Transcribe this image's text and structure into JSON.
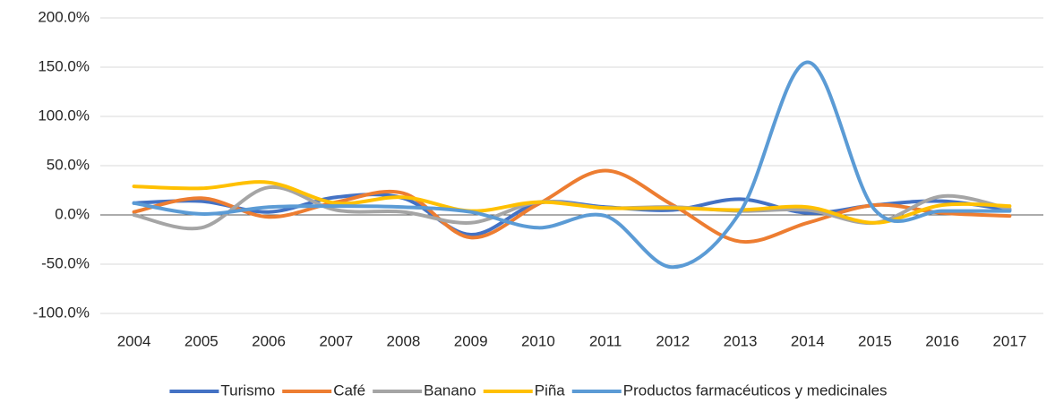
{
  "chart_data": {
    "type": "line",
    "categories": [
      "2004",
      "2005",
      "2006",
      "2007",
      "2008",
      "2009",
      "2010",
      "2011",
      "2012",
      "2013",
      "2014",
      "2015",
      "2016",
      "2017"
    ],
    "series": [
      {
        "name": "Turismo",
        "color": "#4472c4",
        "values": [
          12,
          14,
          3,
          18,
          17,
          -20,
          12,
          8,
          5,
          16,
          2,
          10,
          14,
          5
        ]
      },
      {
        "name": "Café",
        "color": "#ed7d31",
        "values": [
          3,
          17,
          -2,
          13,
          22,
          -23,
          11,
          45,
          10,
          -27,
          -8,
          10,
          2,
          -1
        ]
      },
      {
        "name": "Banano",
        "color": "#a5a5a5",
        "values": [
          0,
          -13,
          28,
          5,
          3,
          -8,
          13,
          7,
          8,
          4,
          5,
          -8,
          19,
          6
        ]
      },
      {
        "name": "Piña",
        "color": "#ffc000",
        "values": [
          29,
          27,
          33,
          12,
          18,
          4,
          13,
          7,
          7,
          5,
          8,
          -8,
          10,
          9
        ]
      },
      {
        "name": "Productos farmacéuticos y medicinales",
        "color": "#5b9bd5",
        "values": [
          12,
          1,
          8,
          9,
          8,
          3,
          -13,
          -1,
          -53,
          3,
          155,
          5,
          4,
          4
        ]
      }
    ],
    "ylim": [
      -100,
      200
    ],
    "yticks": [
      {
        "value": -100,
        "label": "-100.0%"
      },
      {
        "value": -50,
        "label": "-50.0%"
      },
      {
        "value": 0,
        "label": "0.0%"
      },
      {
        "value": 50,
        "label": "50.0%"
      },
      {
        "value": 100,
        "label": "100.0%"
      },
      {
        "value": 150,
        "label": "150.0%"
      },
      {
        "value": 200,
        "label": "200.0%"
      }
    ],
    "grid": true,
    "legend": "bottom"
  }
}
